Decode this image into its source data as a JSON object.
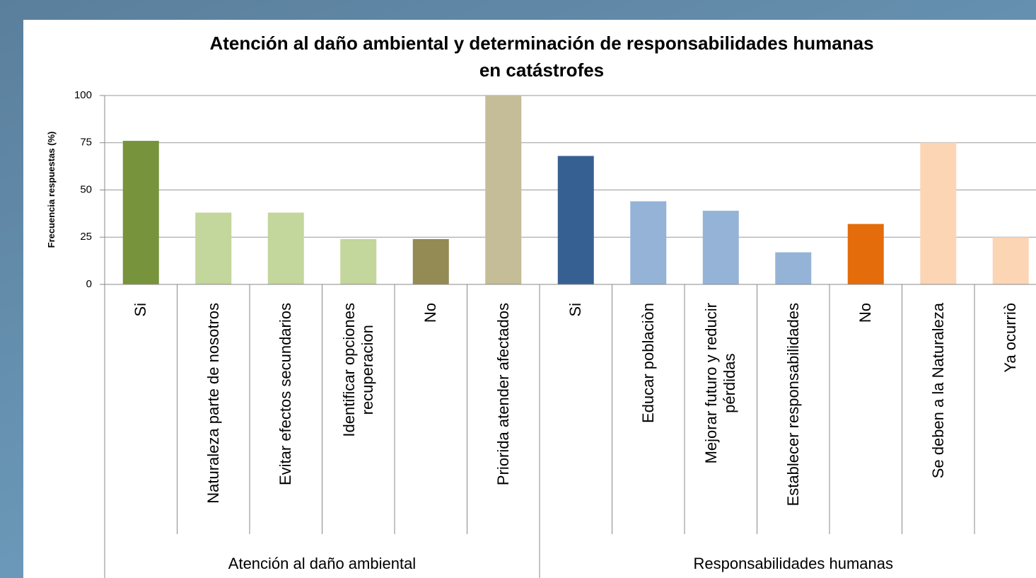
{
  "chart_data": {
    "type": "bar",
    "title": "Atención al daño ambiental y determinación de responsabilidades humanas\nen catástrofes",
    "ylabel": "Frecuencia respuestas (%)",
    "categories": [
      "Si",
      "Naturaleza parte de nosotros",
      "Evitar efectos secundarios",
      "Identificar opciones\nrecuperacion",
      "No",
      "Priorida atender afectados",
      "Si",
      "Educar poblaciòn",
      "Mejorar futuro y reducir\npérdidas",
      "Establecer responsabilidades",
      "No",
      "Se deben a la Naturaleza",
      "Ya ocurriò"
    ],
    "groups": [
      {
        "name": "Atención al daño ambiental",
        "count": 6
      },
      {
        "name": "Responsabilidades humanas",
        "count": 7
      }
    ],
    "values": [
      76,
      38,
      38,
      24,
      24,
      100,
      68,
      44,
      39,
      17,
      32,
      75,
      25
    ],
    "colors": [
      "#77933c",
      "#c3d69b",
      "#c3d69b",
      "#c3d69b",
      "#948a54",
      "#c4bd97",
      "#376092",
      "#95b3d7",
      "#95b3d7",
      "#95b3d7",
      "#e46c0a",
      "#fcd5b5",
      "#fcd5b5"
    ],
    "ylim": [
      0,
      100
    ],
    "yticks": [
      0,
      25,
      50,
      75,
      100
    ],
    "grid": true
  }
}
